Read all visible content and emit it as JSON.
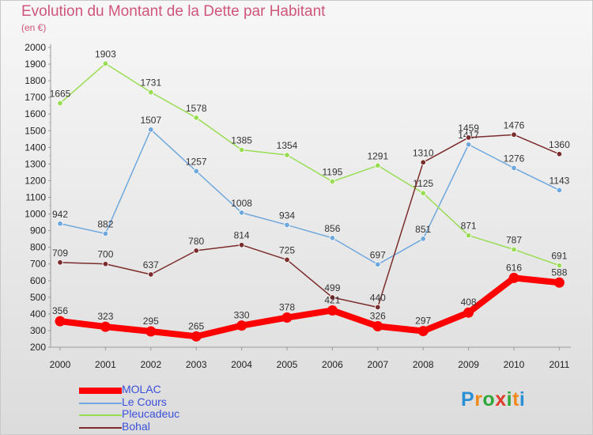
{
  "header": {
    "title": "Evolution du Montant de la Dette par Habitant",
    "subtitle": "(en €)"
  },
  "logo": {
    "letters": [
      "P",
      "r",
      "o",
      "x",
      "i",
      "t",
      "i"
    ],
    "colors": [
      "#2a8fd4",
      "#f08a1c",
      "#2fa83a",
      "#e03a2a",
      "#2fa83a",
      "#f08a1c",
      "#2a8fd4"
    ]
  },
  "chart_data": {
    "type": "line",
    "title": "Evolution du Montant de la Dette par Habitant",
    "subtitle": "(en €)",
    "xlabel": "",
    "ylabel": "",
    "x": [
      "2000",
      "2001",
      "2002",
      "2003",
      "2004",
      "2005",
      "2006",
      "2007",
      "2008",
      "2009",
      "2010",
      "2011"
    ],
    "ylim": [
      200,
      2000
    ],
    "yticks": [
      200,
      300,
      400,
      500,
      600,
      700,
      800,
      900,
      1000,
      1100,
      1200,
      1300,
      1400,
      1500,
      1600,
      1700,
      1800,
      1900,
      2000
    ],
    "grid": false,
    "legend": "bottom-left",
    "series": [
      {
        "name": "MOLAC",
        "color": "#ff0000",
        "values": [
          356,
          323,
          295,
          265,
          330,
          378,
          421,
          326,
          297,
          408,
          616,
          588
        ]
      },
      {
        "name": "Le Cours",
        "color": "#6fa8dc",
        "values": [
          942,
          882,
          1507,
          1257,
          1008,
          934,
          856,
          697,
          851,
          1417,
          1276,
          1143
        ]
      },
      {
        "name": "Pleucadeuc",
        "color": "#99dd55",
        "values": [
          1665,
          1903,
          1731,
          1578,
          1385,
          1354,
          1195,
          1291,
          1125,
          871,
          787,
          691
        ]
      },
      {
        "name": "Bohal",
        "color": "#7b2c2c",
        "values": [
          709,
          700,
          637,
          780,
          814,
          725,
          499,
          440,
          1310,
          1459,
          1476,
          1360
        ]
      }
    ]
  }
}
